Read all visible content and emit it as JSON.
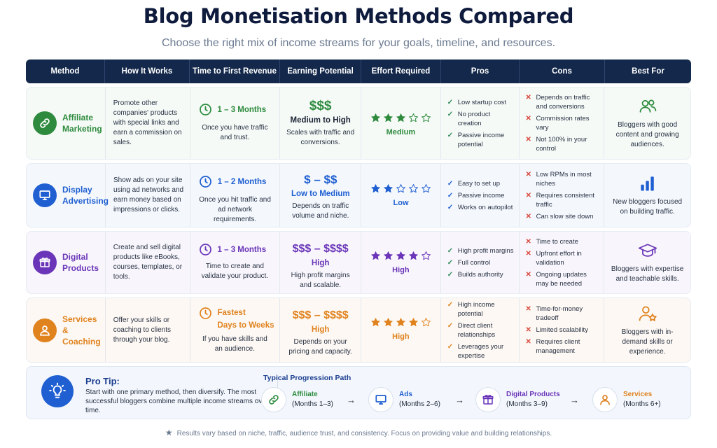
{
  "title": "Blog Monetisation Methods Compared",
  "subtitle": "Choose the right mix of income streams for your goals, timeline, and resources.",
  "columns": [
    "Method",
    "How It Works",
    "Time to First Revenue",
    "Earning Potential",
    "Effort Required",
    "Pros",
    "Cons",
    "Best For"
  ],
  "colors": {
    "green": "#2e8b3e",
    "blue": "#1f5fd1",
    "purple": "#6a35b8",
    "orange": "#e0821e",
    "header": "#13284a"
  },
  "rows": [
    {
      "method": "Affiliate Marketing",
      "icon": "link-icon",
      "how": "Promote other companies' products with special links and earn a commission on sales.",
      "time": "1 – 3 Months",
      "time_note": "Once you have traffic and trust.",
      "dollars": "$$$",
      "earning": "Medium to High",
      "earning_note": "Scales with traffic and conversions.",
      "stars": 3,
      "effort": "Medium",
      "pros": [
        "Low startup cost",
        "No product creation",
        "Passive income potential"
      ],
      "cons": [
        "Depends on traffic and conversions",
        "Commission rates vary",
        "Not 100% in your control"
      ],
      "best_icon": "users-icon",
      "best": "Bloggers with good content and growing audiences."
    },
    {
      "method": "Display Advertising",
      "icon": "monitor-icon",
      "how": "Show ads on your site using ad networks and earn money based on impressions or clicks.",
      "time": "1 – 2 Months",
      "time_note": "Once you hit traffic and ad network requirements.",
      "dollars": "$ – $$",
      "earning": "Low to Medium",
      "earning_note": "Depends on traffic volume and niche.",
      "stars": 2,
      "effort": "Low",
      "pros": [
        "Easy to set up",
        "Passive income",
        "Works on autopilot"
      ],
      "cons": [
        "Low RPMs in most niches",
        "Requires consistent traffic",
        "Can slow site down"
      ],
      "best_icon": "bar-chart-icon",
      "best": "New bloggers focused on building traffic."
    },
    {
      "method": "Digital Products",
      "icon": "gift-box-icon",
      "how": "Create and sell digital products like eBooks, courses, templates, or tools.",
      "time": "1 – 3 Months",
      "time_note": "Time to create and validate your product.",
      "dollars": "$$$ – $$$$",
      "earning": "High",
      "earning_note": "High profit margins and scalable.",
      "stars": 4,
      "effort": "High",
      "pros": [
        "High profit margins",
        "Full control",
        "Builds authority"
      ],
      "cons": [
        "Time to create",
        "Upfront effort in validation",
        "Ongoing updates may be needed"
      ],
      "best_icon": "graduation-cap-icon",
      "best": "Bloggers with expertise and teachable skills."
    },
    {
      "method": "Services & Coaching",
      "icon": "person-icon",
      "how": "Offer your skills or coaching to clients through your blog.",
      "time": "Fastest",
      "time2": "Days to Weeks",
      "time_note": "If you have skills and an audience.",
      "dollars": "$$$ – $$$$",
      "earning": "High",
      "earning_note": "Depends on your pricing and capacity.",
      "stars": 4,
      "effort": "High",
      "pros": [
        "High income potential",
        "Direct client relationships",
        "Leverages your expertise"
      ],
      "cons": [
        "Time-for-money tradeoff",
        "Limited scalability",
        "Requires client management"
      ],
      "best_icon": "person-star-icon",
      "best": "Bloggers with in-demand skills or experience."
    }
  ],
  "tip": {
    "title": "Pro Tip:",
    "text": "Start with one primary method, then diversify. The most successful bloggers combine multiple income streams over time.",
    "path_title": "Typical Progression Path",
    "steps": [
      {
        "name": "Affiliate",
        "months": "(Months 1–3)"
      },
      {
        "name": "Ads",
        "months": "(Months 2–6)"
      },
      {
        "name": "Digital Products",
        "months": "(Months 3–9)"
      },
      {
        "name": "Services",
        "months": "(Months 6+)"
      }
    ],
    "arrow": "→"
  },
  "footnote": "Results vary based on niche, traffic, audience trust, and consistency. Focus on providing value and building relationships."
}
